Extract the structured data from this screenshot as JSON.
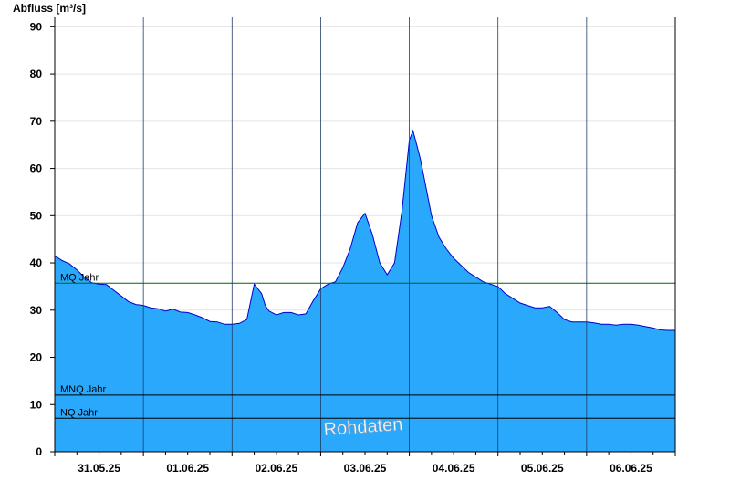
{
  "chart_data": {
    "type": "area",
    "ylabel": "Abfluss [m³/s]",
    "ylim": [
      0,
      92
    ],
    "yticks": [
      0,
      10,
      20,
      30,
      40,
      50,
      60,
      70,
      80,
      90
    ],
    "x_start": "31.05.25 00:00",
    "x_end": "07.06.25 00:00",
    "xtick_labels": [
      "31.05.25",
      "01.06.25",
      "02.06.25",
      "03.06.25",
      "04.06.25",
      "05.06.25",
      "06.06.25"
    ],
    "grid": true,
    "watermark": "Rohdaten",
    "colors": {
      "fill": "#29a8fc",
      "line": "#0000cc",
      "mq_line": "#006600",
      "ref_line": "#000000",
      "grid": "#e4e4e4",
      "day_divider": "#1f3d66"
    },
    "reference_lines": [
      {
        "label": "MQ Jahr",
        "value": 35.7
      },
      {
        "label": "MNQ Jahr",
        "value": 12.0
      },
      {
        "label": "NQ Jahr",
        "value": 7.1
      }
    ],
    "series": [
      {
        "x": [
          "31.05.25 00:00",
          "31.05.25 02:00",
          "31.05.25 04:00",
          "31.05.25 06:00",
          "31.05.25 08:00",
          "31.05.25 10:00",
          "31.05.25 12:00",
          "31.05.25 14:00",
          "31.05.25 16:00",
          "31.05.25 18:00",
          "31.05.25 20:00",
          "31.05.25 22:00",
          "01.06.25 00:00",
          "01.06.25 02:00",
          "01.06.25 04:00",
          "01.06.25 06:00",
          "01.06.25 08:00",
          "01.06.25 10:00",
          "01.06.25 12:00",
          "01.06.25 14:00",
          "01.06.25 16:00",
          "01.06.25 18:00",
          "01.06.25 20:00",
          "01.06.25 22:00",
          "02.06.25 00:00",
          "02.06.25 02:00",
          "02.06.25 04:00",
          "02.06.25 06:00",
          "02.06.25 08:00",
          "02.06.25 09:00",
          "02.06.25 10:00",
          "02.06.25 12:00",
          "02.06.25 14:00",
          "02.06.25 16:00",
          "02.06.25 18:00",
          "02.06.25 20:00",
          "02.06.25 22:00",
          "03.06.25 00:00",
          "03.06.25 02:00",
          "03.06.25 04:00",
          "03.06.25 06:00",
          "03.06.25 08:00",
          "03.06.25 10:00",
          "03.06.25 12:00",
          "03.06.25 14:00",
          "03.06.25 16:00",
          "03.06.25 18:00",
          "03.06.25 20:00",
          "03.06.25 22:00",
          "04.06.25 00:00",
          "04.06.25 01:00",
          "04.06.25 02:00",
          "04.06.25 03:00",
          "04.06.25 04:00",
          "04.06.25 06:00",
          "04.06.25 08:00",
          "04.06.25 10:00",
          "04.06.25 12:00",
          "04.06.25 14:00",
          "04.06.25 16:00",
          "04.06.25 18:00",
          "04.06.25 20:00",
          "04.06.25 22:00",
          "05.06.25 00:00",
          "05.06.25 02:00",
          "05.06.25 04:00",
          "05.06.25 06:00",
          "05.06.25 08:00",
          "05.06.25 10:00",
          "05.06.25 12:00",
          "05.06.25 14:00",
          "05.06.25 16:00",
          "05.06.25 18:00",
          "05.06.25 20:00",
          "05.06.25 22:00",
          "06.06.25 00:00",
          "06.06.25 02:00",
          "06.06.25 04:00",
          "06.06.25 06:00",
          "06.06.25 08:00",
          "06.06.25 10:00",
          "06.06.25 12:00",
          "06.06.25 14:00",
          "06.06.25 16:00",
          "06.06.25 18:00",
          "06.06.25 20:00",
          "06.06.25 22:00",
          "07.06.25 00:00"
        ],
        "y": [
          41.5,
          40.5,
          39.8,
          38.5,
          37.0,
          35.8,
          35.5,
          35.4,
          34.2,
          33.0,
          31.8,
          31.2,
          31.0,
          30.5,
          30.3,
          29.8,
          30.2,
          29.6,
          29.5,
          29.0,
          28.4,
          27.6,
          27.5,
          27.0,
          27.0,
          27.2,
          28.0,
          35.5,
          33.5,
          31.0,
          29.8,
          29.0,
          29.5,
          29.5,
          29.0,
          29.2,
          32.0,
          34.5,
          35.5,
          36.0,
          39.0,
          43.0,
          48.5,
          50.5,
          46.0,
          40.0,
          37.5,
          40.0,
          51.0,
          66.0,
          68.0,
          65.0,
          62.0,
          58.0,
          50.0,
          45.5,
          43.0,
          41.0,
          39.5,
          38.0,
          37.0,
          36.0,
          35.5,
          35.0,
          33.5,
          32.5,
          31.5,
          31.0,
          30.5,
          30.5,
          30.8,
          29.5,
          28.0,
          27.5,
          27.5,
          27.5,
          27.3,
          27.0,
          27.0,
          26.8,
          27.0,
          27.0,
          26.8,
          26.5,
          26.2,
          25.8,
          25.7,
          25.7
        ]
      }
    ]
  }
}
